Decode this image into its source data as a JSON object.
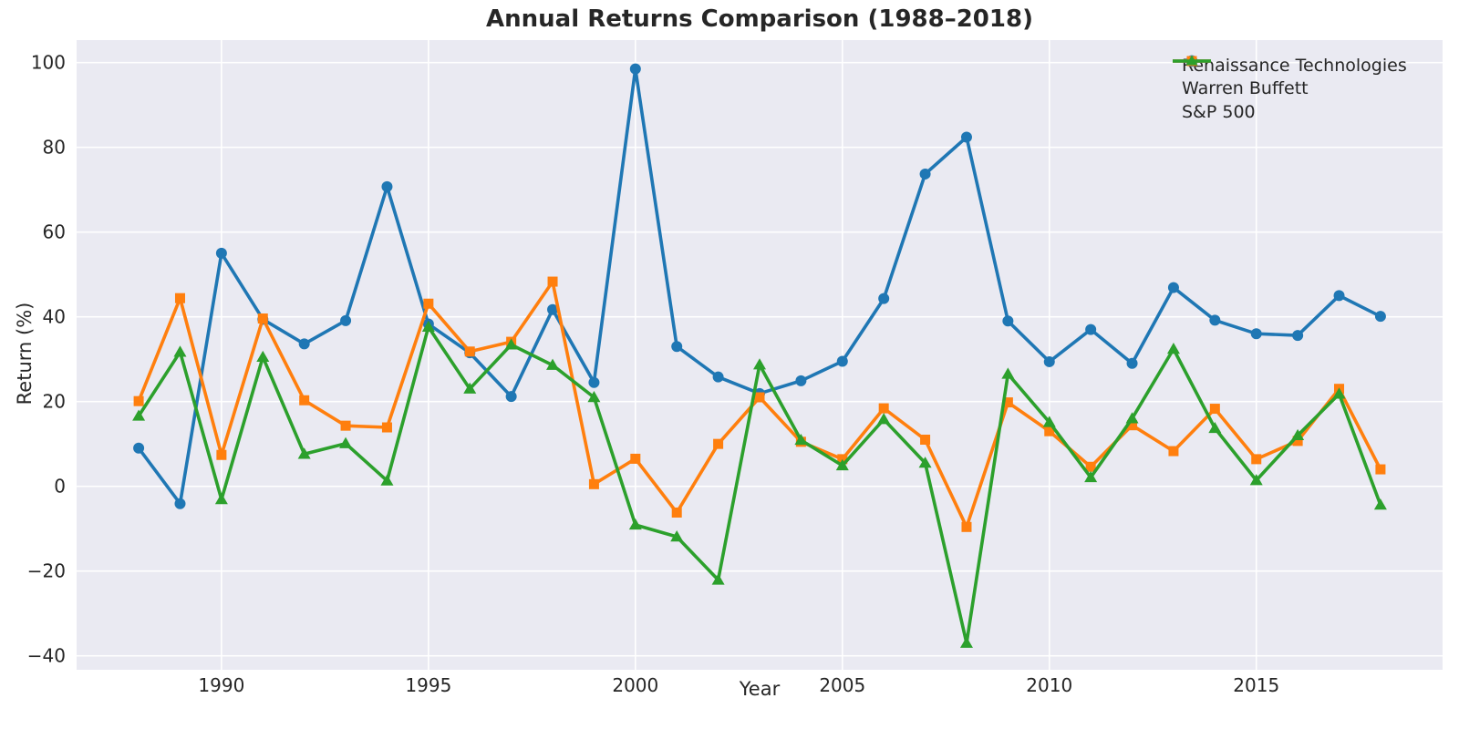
{
  "chart_data": {
    "type": "line",
    "title": "Annual Returns Comparison (1988–2018)",
    "xlabel": "Year",
    "ylabel": "Return (%)",
    "x": [
      1988,
      1989,
      1990,
      1991,
      1992,
      1993,
      1994,
      1995,
      1996,
      1997,
      1998,
      1999,
      2000,
      2001,
      2002,
      2003,
      2004,
      2005,
      2006,
      2007,
      2008,
      2009,
      2010,
      2011,
      2012,
      2013,
      2014,
      2015,
      2016,
      2017,
      2018
    ],
    "series": [
      {
        "name": "Renaissance Technologies",
        "color": "#1f77b4",
        "marker": "circle",
        "values": [
          9.0,
          -4.1,
          55.0,
          39.4,
          33.6,
          39.1,
          70.7,
          38.3,
          31.5,
          21.2,
          41.7,
          24.5,
          98.5,
          33.0,
          25.8,
          21.9,
          24.9,
          29.5,
          44.3,
          73.7,
          82.4,
          39.0,
          29.4,
          37.0,
          29.0,
          46.9,
          39.2,
          36.0,
          35.6,
          45.0,
          40.1
        ]
      },
      {
        "name": "Warren Buffett",
        "color": "#ff7f0e",
        "marker": "square",
        "values": [
          20.1,
          44.4,
          7.4,
          39.6,
          20.3,
          14.3,
          13.9,
          43.1,
          31.8,
          34.1,
          48.3,
          0.5,
          6.5,
          -6.2,
          10.0,
          21.0,
          10.5,
          6.4,
          18.4,
          11.0,
          -9.6,
          19.8,
          13.0,
          4.6,
          14.4,
          8.3,
          18.3,
          6.4,
          10.7,
          23.0,
          4.0
        ]
      },
      {
        "name": "S&P 500",
        "color": "#2ca02c",
        "marker": "triangle",
        "values": [
          16.6,
          31.7,
          -3.1,
          30.5,
          7.6,
          10.1,
          1.3,
          37.6,
          23.0,
          33.4,
          28.6,
          21.0,
          -9.1,
          -11.9,
          -22.1,
          28.7,
          10.9,
          4.9,
          15.8,
          5.5,
          -37.0,
          26.5,
          15.1,
          2.1,
          16.0,
          32.4,
          13.7,
          1.4,
          12.0,
          21.8,
          -4.4
        ]
      }
    ],
    "xticks": [
      1990,
      1995,
      2000,
      2005,
      2010,
      2015
    ],
    "yticks": [
      -40,
      -20,
      0,
      20,
      40,
      60,
      80,
      100
    ],
    "xlim": [
      1986.5,
      2019.5
    ],
    "ylim": [
      -43.3,
      105.3
    ],
    "grid": true,
    "legend_position": "upper right",
    "plot_background": "#eaeaf2",
    "grid_color": "#ffffff",
    "text_color": "#262626"
  }
}
